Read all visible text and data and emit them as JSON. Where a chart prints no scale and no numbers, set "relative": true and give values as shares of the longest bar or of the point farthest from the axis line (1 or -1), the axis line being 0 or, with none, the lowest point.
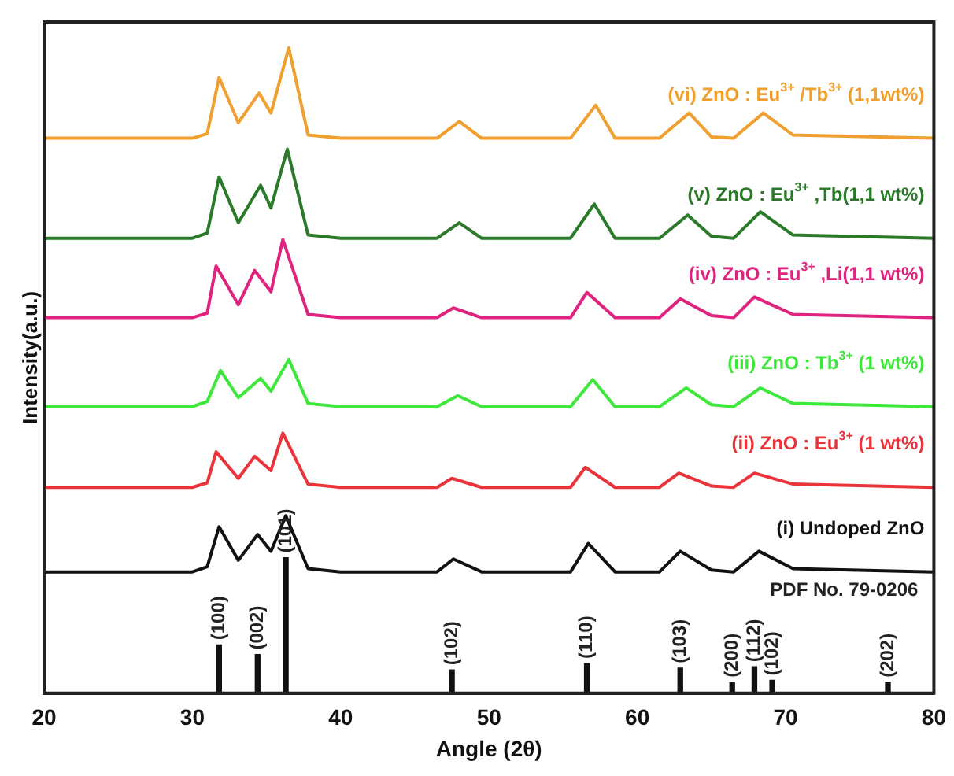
{
  "chart_data": {
    "type": "line",
    "relative": true,
    "xlabel": "Angle (2θ)",
    "ylabel": "Intensity(a.u.)",
    "xlim": [
      20,
      80
    ],
    "xticks": [
      20,
      30,
      40,
      50,
      60,
      70,
      80
    ],
    "grid": false,
    "legend": false,
    "series": [
      {
        "name": "(i) Undoped ZnO",
        "color": "#111111",
        "x": [
          20,
          30,
          31,
          31.8,
          33.1,
          34.4,
          35.3,
          36.3,
          37.8,
          40,
          46.5,
          47.6,
          49.5,
          55.5,
          56.7,
          58.5,
          61.5,
          62.9,
          65,
          66.5,
          68.2,
          70.5,
          80
        ],
        "values": [
          0.188,
          0.188,
          0.196,
          0.258,
          0.206,
          0.246,
          0.22,
          0.275,
          0.193,
          0.188,
          0.188,
          0.208,
          0.188,
          0.188,
          0.232,
          0.188,
          0.188,
          0.22,
          0.191,
          0.188,
          0.22,
          0.193,
          0.188
        ]
      },
      {
        "name": "(ii) ZnO : Eu$^{3+}$ (1 wt%)",
        "color": "#e8343a",
        "x": [
          20,
          30,
          31,
          31.6,
          33.1,
          34.2,
          35.3,
          36.1,
          37.8,
          40,
          46.5,
          47.5,
          49.5,
          55.5,
          56.5,
          58.5,
          61.5,
          62.8,
          65,
          66.5,
          67.9,
          70.5,
          80
        ],
        "values": [
          0.319,
          0.319,
          0.326,
          0.374,
          0.333,
          0.367,
          0.345,
          0.403,
          0.324,
          0.319,
          0.319,
          0.333,
          0.319,
          0.319,
          0.35,
          0.319,
          0.319,
          0.341,
          0.321,
          0.319,
          0.341,
          0.324,
          0.319
        ]
      },
      {
        "name": "(iii) ZnO : Tb$^{3+}$ (1 wt%)",
        "color": "#3ee83a",
        "x": [
          20,
          30,
          31,
          31.9,
          33.1,
          34.6,
          35.3,
          36.5,
          37.8,
          40,
          46.5,
          47.9,
          49.5,
          55.5,
          57.0,
          58.5,
          61.5,
          63.3,
          65,
          66.5,
          68.3,
          70.5,
          80
        ],
        "values": [
          0.444,
          0.444,
          0.452,
          0.5,
          0.458,
          0.488,
          0.468,
          0.517,
          0.449,
          0.444,
          0.444,
          0.461,
          0.444,
          0.444,
          0.486,
          0.444,
          0.444,
          0.473,
          0.447,
          0.444,
          0.473,
          0.449,
          0.444
        ]
      },
      {
        "name": "(iv) ZnO : Eu$^{3+}$ ,Li(1,1 wt%)",
        "color": "#e0237f",
        "x": [
          20,
          30,
          31,
          31.6,
          33.1,
          34.2,
          35.3,
          36.1,
          37.8,
          40,
          46.5,
          47.6,
          49.5,
          55.5,
          56.6,
          58.5,
          61.5,
          62.9,
          65,
          66.5,
          67.9,
          70.5,
          80
        ],
        "values": [
          0.582,
          0.582,
          0.589,
          0.662,
          0.602,
          0.655,
          0.622,
          0.703,
          0.587,
          0.582,
          0.582,
          0.597,
          0.582,
          0.582,
          0.621,
          0.582,
          0.582,
          0.611,
          0.585,
          0.582,
          0.614,
          0.587,
          0.582
        ]
      },
      {
        "name": "(v) ZnO : Eu$^{3+}$ ,Tb(1,1 wt%)",
        "color": "#2a7a2a",
        "x": [
          20,
          30,
          31,
          31.8,
          33.1,
          34.6,
          35.3,
          36.4,
          37.8,
          40,
          46.5,
          48.0,
          49.5,
          55.5,
          57.1,
          58.5,
          61.5,
          63.4,
          65,
          66.5,
          68.3,
          70.5,
          80
        ],
        "values": [
          0.705,
          0.705,
          0.713,
          0.8,
          0.729,
          0.787,
          0.752,
          0.843,
          0.71,
          0.705,
          0.705,
          0.729,
          0.705,
          0.705,
          0.758,
          0.705,
          0.705,
          0.741,
          0.708,
          0.705,
          0.746,
          0.71,
          0.705
        ]
      },
      {
        "name": "(vi) ZnO : Eu$^{3+}$ /Tb$^{3+}$ (1,1wt%)",
        "color": "#f0a030",
        "x": [
          20,
          30,
          31,
          31.8,
          33.1,
          34.5,
          35.3,
          36.5,
          37.8,
          40,
          46.5,
          48.0,
          49.5,
          55.5,
          57.2,
          58.5,
          61.5,
          63.5,
          65,
          66.5,
          68.5,
          70.5,
          80
        ],
        "values": [
          0.86,
          0.86,
          0.867,
          0.954,
          0.884,
          0.93,
          0.899,
          1,
          0.865,
          0.86,
          0.86,
          0.886,
          0.86,
          0.86,
          0.911,
          0.86,
          0.86,
          0.899,
          0.862,
          0.86,
          0.899,
          0.865,
          0.86
        ]
      },
      {
        "type": "bar",
        "color": "#111111",
        "x": [
          31.8,
          34.4,
          36.3,
          47.5,
          56.6,
          62.9,
          66.4,
          67.9,
          69.1,
          76.9
        ],
        "values": [
          0.075,
          0.06,
          0.21,
          0.036,
          0.046,
          0.039,
          0.017,
          0.041,
          0.02,
          0.017
        ]
      }
    ],
    "annotations": [
      {
        "text": "(100)",
        "x": 31.8,
        "y": 0.075
      },
      {
        "text": "(002)",
        "x": 34.4,
        "y": 0.06
      },
      {
        "text": "(101)",
        "x": 36.3,
        "y": 0.21
      },
      {
        "text": "(102)",
        "x": 47.5,
        "y": 0.036
      },
      {
        "text": "(110)",
        "x": 56.6,
        "y": 0.046
      },
      {
        "text": "(103)",
        "x": 62.9,
        "y": 0.039
      },
      {
        "text": "(200)",
        "x": 66.4,
        "y": 0.017
      },
      {
        "text": "(112)",
        "x": 67.9,
        "y": 0.041
      },
      {
        "text": "(102)",
        "x": 69.1,
        "y": 0.02
      },
      {
        "text": "(202)",
        "x": 76.9,
        "y": 0.017
      },
      "PDF No. 79-0206"
    ]
  }
}
